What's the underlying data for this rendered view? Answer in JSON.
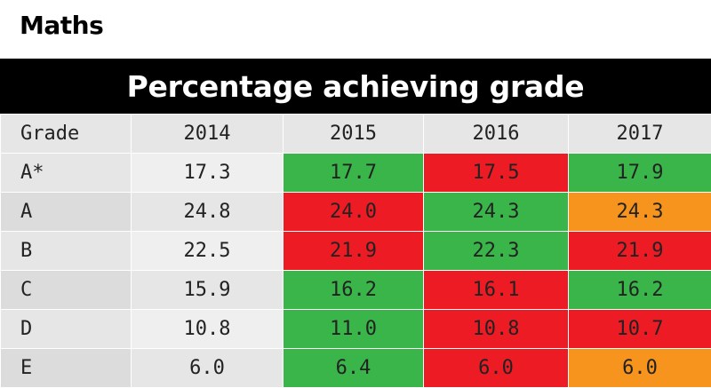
{
  "subject": "Maths",
  "banner_title": "Percentage achieving grade",
  "colors": {
    "green": "#3ab54a",
    "red": "#ed1c24",
    "orange": "#f7941d"
  },
  "chart_data": {
    "type": "table",
    "title": "Percentage achieving grade",
    "columns": [
      "Grade",
      "2014",
      "2015",
      "2016",
      "2017"
    ],
    "rows": [
      {
        "grade": "A*",
        "values": [
          "17.3",
          "17.7",
          "17.5",
          "17.9"
        ],
        "status": [
          null,
          "green",
          "red",
          "green"
        ]
      },
      {
        "grade": "A",
        "values": [
          "24.8",
          "24.0",
          "24.3",
          "24.3"
        ],
        "status": [
          null,
          "red",
          "green",
          "orange"
        ]
      },
      {
        "grade": "B",
        "values": [
          "22.5",
          "21.9",
          "22.3",
          "21.9"
        ],
        "status": [
          null,
          "red",
          "green",
          "red"
        ]
      },
      {
        "grade": "C",
        "values": [
          "15.9",
          "16.2",
          "16.1",
          "16.2"
        ],
        "status": [
          null,
          "green",
          "red",
          "green"
        ]
      },
      {
        "grade": "D",
        "values": [
          "10.8",
          "11.0",
          "10.8",
          "10.7"
        ],
        "status": [
          null,
          "green",
          "red",
          "red"
        ]
      },
      {
        "grade": "E",
        "values": [
          "6.0",
          "6.4",
          "6.0",
          "6.0"
        ],
        "status": [
          null,
          "green",
          "red",
          "orange"
        ]
      }
    ]
  }
}
